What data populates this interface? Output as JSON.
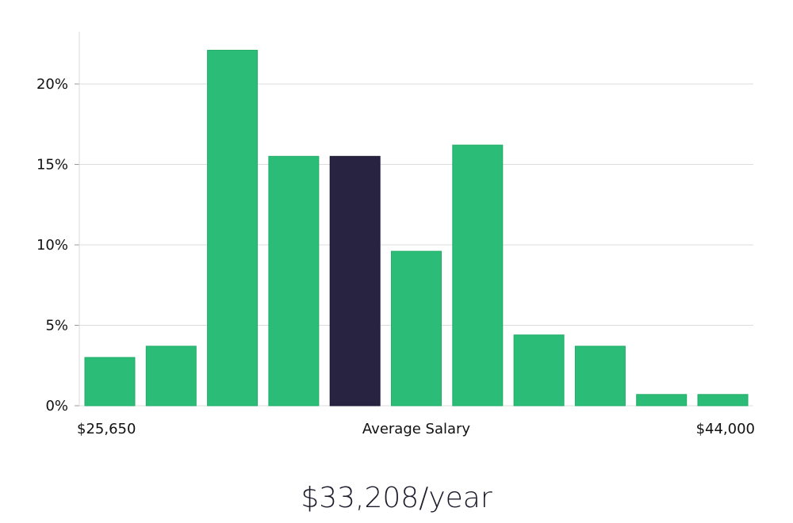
{
  "chart_data": {
    "type": "bar",
    "title": "",
    "xlabel": "Average Salary",
    "ylabel": "",
    "x_start_label": "$25,650",
    "x_end_label": "$44,000",
    "ylim": [
      0,
      23
    ],
    "yticks": [
      0,
      5,
      10,
      15,
      20
    ],
    "ytick_labels": [
      "0%",
      "5%",
      "10%",
      "15%",
      "20%"
    ],
    "grid": true,
    "values": [
      3.0,
      3.7,
      22.1,
      15.5,
      15.5,
      9.6,
      16.2,
      4.4,
      3.7,
      0.7,
      0.7
    ],
    "highlight_index": 4,
    "colors": {
      "bar": "#2bbd77",
      "bar_edge": "#22ad68",
      "highlight": "#272341",
      "grid": "#dcdcdc",
      "axis": "#d9d9d9"
    }
  },
  "summary": {
    "salary": "$33,208/year"
  }
}
